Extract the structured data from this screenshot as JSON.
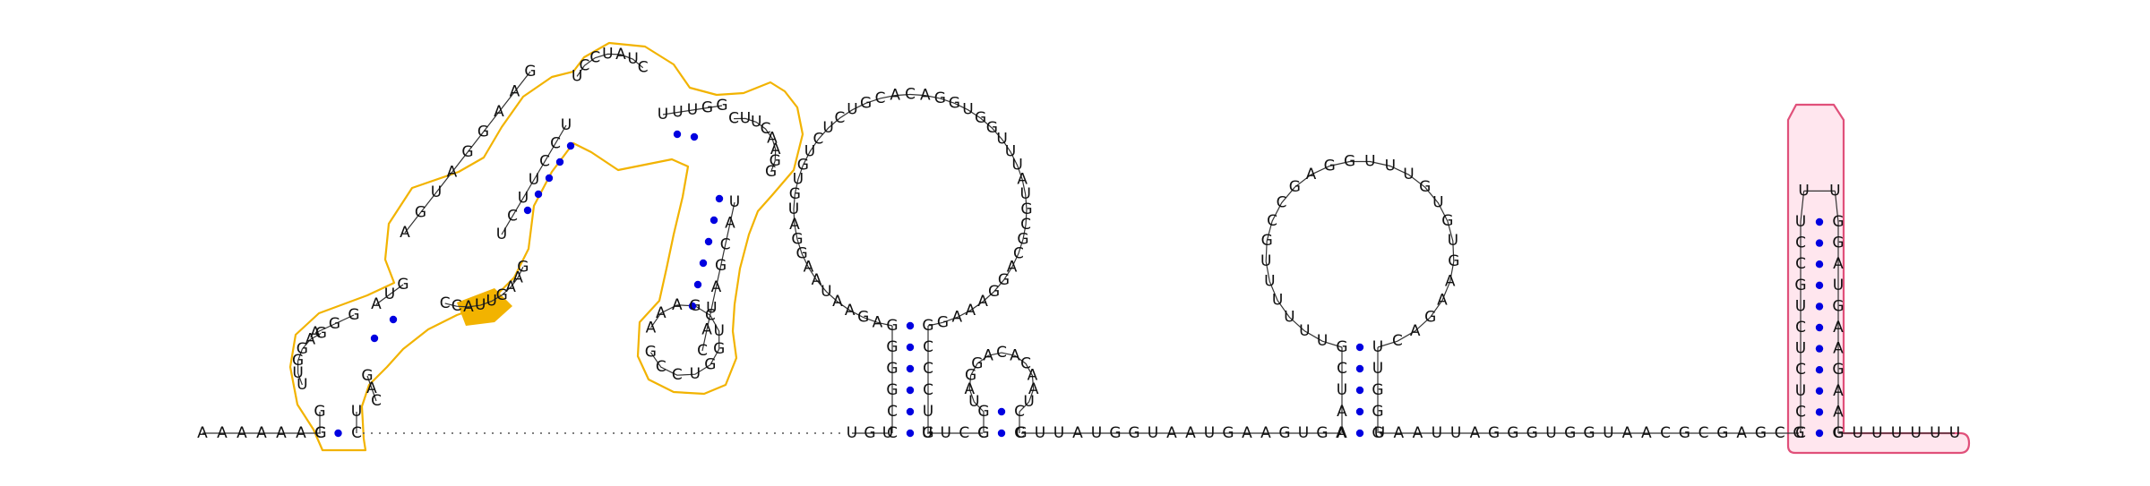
{
  "colors": {
    "base_pair": "#0000e0",
    "highlight_outline": "#f2b300",
    "highlight_pink_fill": "#ffe6ee",
    "highlight_pink_stroke": "#e0507a"
  },
  "tail_5prime": "AAAAAAG",
  "linker_3": "UGU",
  "linker_4": "UUCC",
  "linker_5": "GUUAUGGUAAUGAAGUGA",
  "linker_6": "UAAUUAGGGUGGUAACGCGAGCG",
  "tail_3prime": "CUUUUUU",
  "domain1": {
    "stem_a_left": "CGAGGAUG",
    "hairpin_a": "UUGGAG",
    "stem_a_right": "GACUC",
    "inner_loop": "CCAUUGAAG",
    "stem_b_left": "AGUAGGAAG",
    "stem_b_right": "UCUUCCU",
    "top_loop": "UCCUAUC",
    "stem_c_left": "UUUGG",
    "stem_c_loop": "CUUCAAGG",
    "stem_c_right": "UACGAUAC"
  },
  "hairpin2": {
    "stem_left": "CCGGGG",
    "stem_right": "GCCCUG",
    "loop": "AGAAUAAGGAUGUGUCUCUGCACAGGUGGUUUAUGCGCAGGAAAG"
  },
  "hairpin3": {
    "stem_left": "GG",
    "stem_right": "CC",
    "loop": "UAGGACACAAU"
  },
  "hairpin4": {
    "stem_left": "AAUCG",
    "stem_right": "UUGGG",
    "loop": "UUUUUUGCCGAGGUUUGUGUGAAGAC"
  },
  "hairpin5": {
    "stem_left": "CCUCUCUGCCU",
    "stem_right": "GGAUGAAGAAG",
    "loop": "UU"
  }
}
